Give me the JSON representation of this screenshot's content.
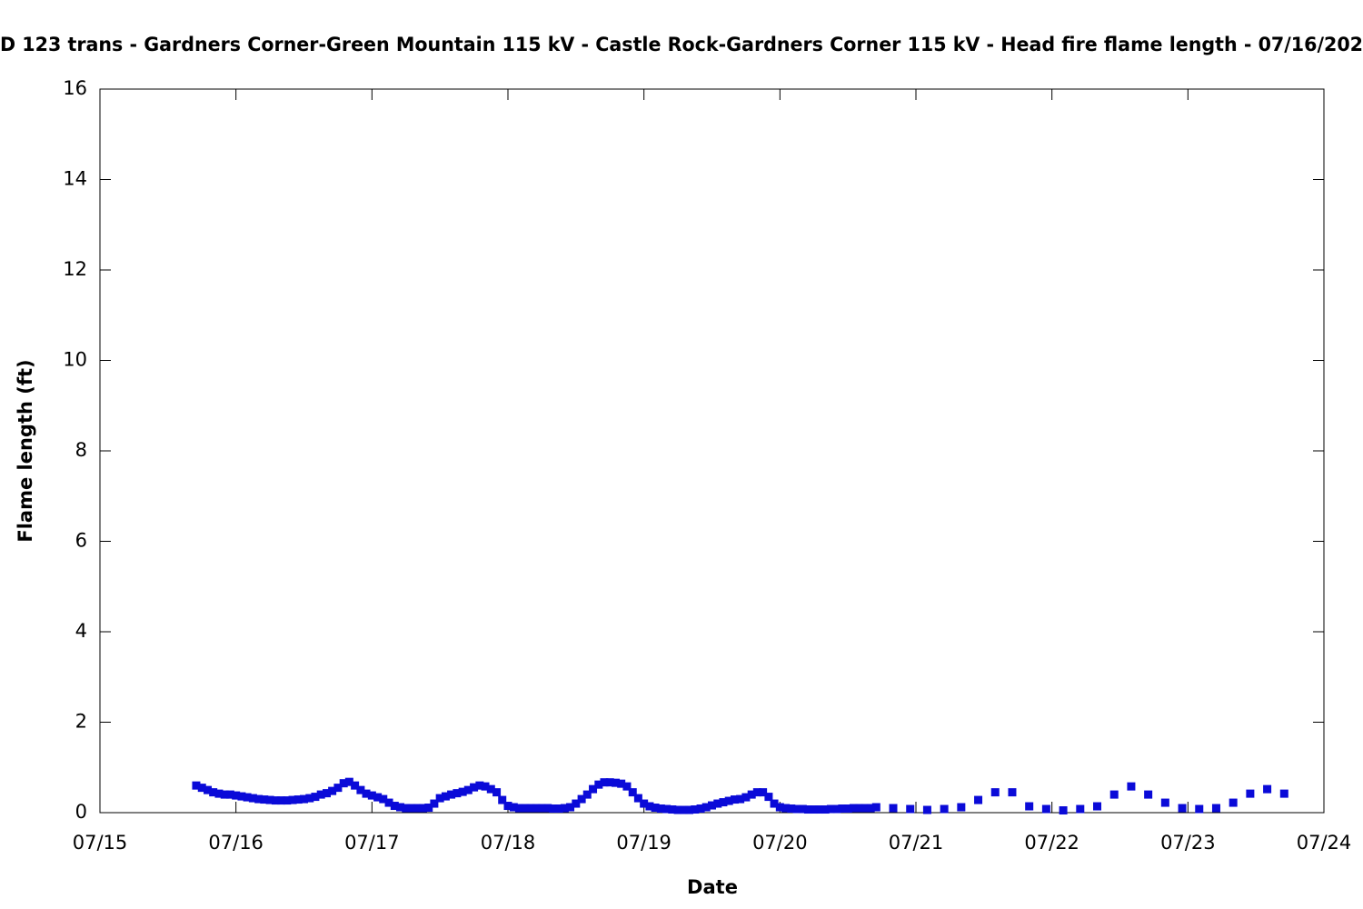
{
  "chart_data": {
    "type": "scatter",
    "title": "D 123 trans - Gardners Corner-Green Mountain 115 kV - Castle Rock-Gardners Corner 115 kV - Head fire flame length - 07/16/202",
    "x_label": "Date",
    "y_label": "Flame length (ft)",
    "color": "#0a0ad8",
    "xlim": [
      0,
      9
    ],
    "xticks": [
      {
        "value": 0,
        "label": "07/15"
      },
      {
        "value": 1,
        "label": "07/16"
      },
      {
        "value": 2,
        "label": "07/17"
      },
      {
        "value": 3,
        "label": "07/18"
      },
      {
        "value": 4,
        "label": "07/19"
      },
      {
        "value": 5,
        "label": "07/20"
      },
      {
        "value": 6,
        "label": "07/21"
      },
      {
        "value": 7,
        "label": "07/22"
      },
      {
        "value": 8,
        "label": "07/23"
      },
      {
        "value": 9,
        "label": "07/24"
      }
    ],
    "ylim": [
      0,
      16
    ],
    "yticks": [
      0,
      2,
      4,
      6,
      8,
      10,
      12,
      14,
      16
    ],
    "x": [
      0.708,
      0.75,
      0.792,
      0.833,
      0.875,
      0.917,
      0.958,
      1,
      1.042,
      1.083,
      1.125,
      1.167,
      1.208,
      1.25,
      1.292,
      1.333,
      1.375,
      1.417,
      1.458,
      1.5,
      1.542,
      1.583,
      1.625,
      1.667,
      1.708,
      1.75,
      1.792,
      1.833,
      1.875,
      1.917,
      1.958,
      2,
      2.042,
      2.083,
      2.125,
      2.167,
      2.208,
      2.25,
      2.292,
      2.333,
      2.375,
      2.417,
      2.458,
      2.5,
      2.542,
      2.583,
      2.625,
      2.667,
      2.708,
      2.75,
      2.792,
      2.833,
      2.875,
      2.917,
      2.958,
      3,
      3.042,
      3.083,
      3.125,
      3.167,
      3.208,
      3.25,
      3.292,
      3.333,
      3.375,
      3.417,
      3.458,
      3.5,
      3.542,
      3.583,
      3.625,
      3.667,
      3.708,
      3.75,
      3.792,
      3.833,
      3.875,
      3.917,
      3.958,
      4,
      4.042,
      4.083,
      4.125,
      4.167,
      4.208,
      4.25,
      4.292,
      4.333,
      4.375,
      4.417,
      4.458,
      4.5,
      4.542,
      4.583,
      4.625,
      4.667,
      4.708,
      4.75,
      4.792,
      4.833,
      4.875,
      4.917,
      4.958,
      5,
      5.042,
      5.083,
      5.125,
      5.167,
      5.208,
      5.25,
      5.292,
      5.333,
      5.375,
      5.417,
      5.458,
      5.5,
      5.542,
      5.583,
      5.625,
      5.667,
      5.708,
      5.833,
      5.958,
      6.083,
      6.208,
      6.333,
      6.458,
      6.583,
      6.708,
      6.833,
      6.958,
      7.083,
      7.208,
      7.333,
      7.458,
      7.583,
      7.708,
      7.833,
      7.958,
      8.083,
      8.208,
      8.333,
      8.458,
      8.583,
      8.708
    ],
    "values": [
      0.6,
      0.55,
      0.5,
      0.45,
      0.42,
      0.4,
      0.4,
      0.38,
      0.36,
      0.34,
      0.32,
      0.3,
      0.29,
      0.28,
      0.27,
      0.27,
      0.27,
      0.28,
      0.29,
      0.3,
      0.32,
      0.35,
      0.4,
      0.43,
      0.48,
      0.55,
      0.65,
      0.68,
      0.6,
      0.5,
      0.42,
      0.38,
      0.34,
      0.3,
      0.22,
      0.15,
      0.12,
      0.1,
      0.1,
      0.1,
      0.1,
      0.11,
      0.2,
      0.32,
      0.36,
      0.4,
      0.43,
      0.46,
      0.5,
      0.56,
      0.6,
      0.58,
      0.52,
      0.45,
      0.28,
      0.15,
      0.12,
      0.1,
      0.1,
      0.1,
      0.1,
      0.1,
      0.1,
      0.09,
      0.09,
      0.1,
      0.12,
      0.2,
      0.3,
      0.4,
      0.52,
      0.62,
      0.67,
      0.67,
      0.66,
      0.64,
      0.58,
      0.45,
      0.32,
      0.2,
      0.14,
      0.11,
      0.09,
      0.08,
      0.07,
      0.06,
      0.06,
      0.06,
      0.07,
      0.09,
      0.12,
      0.16,
      0.2,
      0.23,
      0.26,
      0.29,
      0.3,
      0.34,
      0.4,
      0.45,
      0.45,
      0.35,
      0.2,
      0.12,
      0.1,
      0.09,
      0.08,
      0.08,
      0.07,
      0.07,
      0.07,
      0.07,
      0.08,
      0.08,
      0.09,
      0.09,
      0.1,
      0.1,
      0.1,
      0.1,
      0.12,
      0.1,
      0.08,
      0.06,
      0.08,
      0.12,
      0.28,
      0.45,
      0.45,
      0.14,
      0.08,
      0.05,
      0.08,
      0.14,
      0.4,
      0.58,
      0.4,
      0.22,
      0.1,
      0.08,
      0.1,
      0.22,
      0.42,
      0.52,
      0.42
    ]
  }
}
